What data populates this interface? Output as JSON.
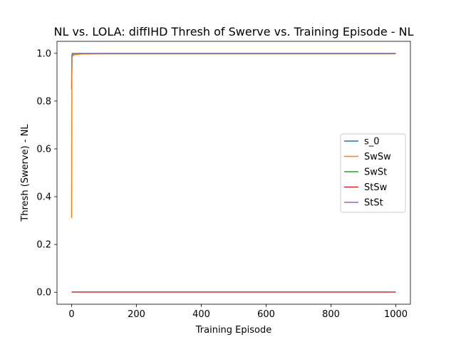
{
  "chart_data": {
    "type": "line",
    "title": "NL vs. LOLA: diffIHD Thresh of Swerve vs. Training Episode - NL",
    "xlabel": "Training Episode",
    "ylabel": "Thresh (Swerve) - NL",
    "xlim": [
      -45,
      1045
    ],
    "ylim": [
      -0.05,
      1.05
    ],
    "xticks": [
      0,
      200,
      400,
      600,
      800,
      1000
    ],
    "yticks": [
      0.0,
      0.2,
      0.4,
      0.6,
      0.8,
      1.0
    ],
    "xtick_labels": [
      "0",
      "200",
      "400",
      "600",
      "800",
      "1000"
    ],
    "ytick_labels": [
      "0.0",
      "0.2",
      "0.4",
      "0.6",
      "0.8",
      "1.0"
    ],
    "legend_position": "center-right",
    "grid": false,
    "series": [
      {
        "name": "s_0",
        "color": "#1f77b4",
        "x": [
          0,
          1,
          2,
          5,
          10,
          20,
          50,
          100,
          1000
        ],
        "y": [
          0.85,
          0.99,
          0.995,
          0.997,
          0.998,
          0.999,
          0.999,
          0.999,
          0.999
        ]
      },
      {
        "name": "SwSw",
        "color": "#ff7f0e",
        "x": [
          0,
          1,
          2,
          4,
          8,
          15,
          30,
          100,
          1000
        ],
        "y": [
          0.31,
          0.92,
          0.985,
          0.99,
          0.993,
          0.995,
          0.997,
          0.998,
          0.998
        ]
      },
      {
        "name": "SwSt",
        "color": "#2ca02c",
        "x": [
          0,
          1000
        ],
        "y": [
          0.999,
          0.999
        ]
      },
      {
        "name": "StSw",
        "color": "#d62728",
        "x": [
          0,
          1000
        ],
        "y": [
          0.001,
          0.001
        ]
      },
      {
        "name": "StSt",
        "color": "#9467bd",
        "x": [
          0,
          1000
        ],
        "y": [
          0.999,
          0.999
        ]
      }
    ]
  }
}
